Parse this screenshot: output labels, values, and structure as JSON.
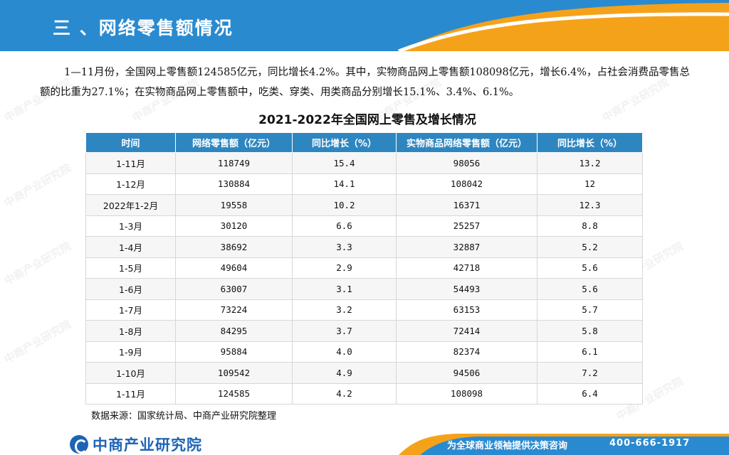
{
  "header": {
    "title": "三 、网络零售额情况"
  },
  "intro": "1—11月份，全国网上零售额124585亿元，同比增长4.2%。其中，实物商品网上零售额108098亿元，增长6.4%，占社会消费品零售总额的比重为27.1%；在实物商品网上零售额中，吃类、穿类、用类商品分别增长15.1%、3.4%、6.1%。",
  "table": {
    "title": "2021-2022年全国网上零售及增长情况",
    "headers": [
      "时间",
      "网络零售额（亿元）",
      "同比增长（%）",
      "实物商品网络零售额（亿元）",
      "同比增长（%）"
    ],
    "rows": [
      [
        "1-11月",
        "118749",
        "15.4",
        "98056",
        "13.2"
      ],
      [
        "1-12月",
        "130884",
        "14.1",
        "108042",
        "12"
      ],
      [
        "2022年1-2月",
        "19558",
        "10.2",
        "16371",
        "12.3"
      ],
      [
        "1-3月",
        "30120",
        "6.6",
        "25257",
        "8.8"
      ],
      [
        "1-4月",
        "38692",
        "3.3",
        "32887",
        "5.2"
      ],
      [
        "1-5月",
        "49604",
        "2.9",
        "42718",
        "5.6"
      ],
      [
        "1-6月",
        "63007",
        "3.1",
        "54493",
        "5.6"
      ],
      [
        "1-7月",
        "73224",
        "3.2",
        "63153",
        "5.7"
      ],
      [
        "1-8月",
        "84295",
        "3.7",
        "72414",
        "5.8"
      ],
      [
        "1-9月",
        "95884",
        "4.0",
        "82374",
        "6.1"
      ],
      [
        "1-10月",
        "109542",
        "4.9",
        "94506",
        "7.2"
      ],
      [
        "1-11月",
        "124585",
        "4.2",
        "108098",
        "6.4"
      ]
    ]
  },
  "source": "数据来源：国家统计局、中商产业研究院整理",
  "footer": {
    "logo_text": "中商产业研究院",
    "slogan": "为全球商业领袖提供决策咨询",
    "phone": "400-666-1917"
  },
  "watermark": "中商产业研究院",
  "colors": {
    "header_blue": "#2a8ad0",
    "accent_orange": "#f5a21b",
    "table_header": "#2e86c1",
    "logo_blue": "#1e64b4"
  }
}
